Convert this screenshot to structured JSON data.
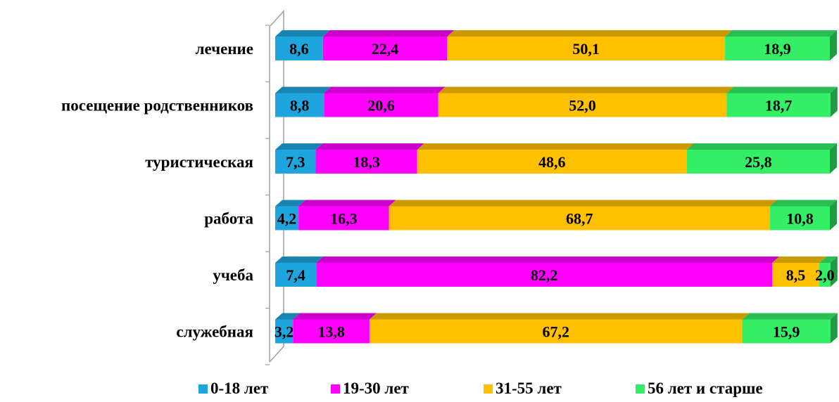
{
  "chart_data": {
    "type": "bar",
    "orientation": "horizontal",
    "stacked": true,
    "percent": true,
    "categories": [
      "лечение",
      "посещение родственников",
      "туристическая",
      "работа",
      "учеба",
      "служебная"
    ],
    "series": [
      {
        "name": "0-18 лет",
        "color": "#1fa5dd",
        "values": [
          8.6,
          8.8,
          7.3,
          4.2,
          7.4,
          3.2
        ],
        "labels": [
          "8,6",
          "8,8",
          "7,3",
          "4,2",
          "7,4",
          "3,2"
        ]
      },
      {
        "name": "19-30 лет",
        "color": "#ff00ff",
        "values": [
          22.4,
          20.6,
          18.3,
          16.3,
          82.2,
          13.8
        ],
        "labels": [
          "22,4",
          "20,6",
          "18,3",
          "16,3",
          "82,2",
          "13,8"
        ]
      },
      {
        "name": "31-55 лет",
        "color": "#ffc000",
        "values": [
          50.1,
          52.0,
          48.6,
          68.7,
          8.5,
          67.2
        ],
        "labels": [
          "50,1",
          "52,0",
          "48,6",
          "68,7",
          "8,5",
          "67,2"
        ]
      },
      {
        "name": "56 лет и старше",
        "color": "#33ee66",
        "values": [
          18.9,
          18.7,
          25.8,
          10.8,
          2.0,
          15.9
        ],
        "labels": [
          "18,9",
          "18,7",
          "25,8",
          "10,8",
          "2,0",
          "15,9"
        ]
      }
    ],
    "xlim": [
      0,
      100
    ],
    "legend_position": "bottom",
    "grid": false
  }
}
